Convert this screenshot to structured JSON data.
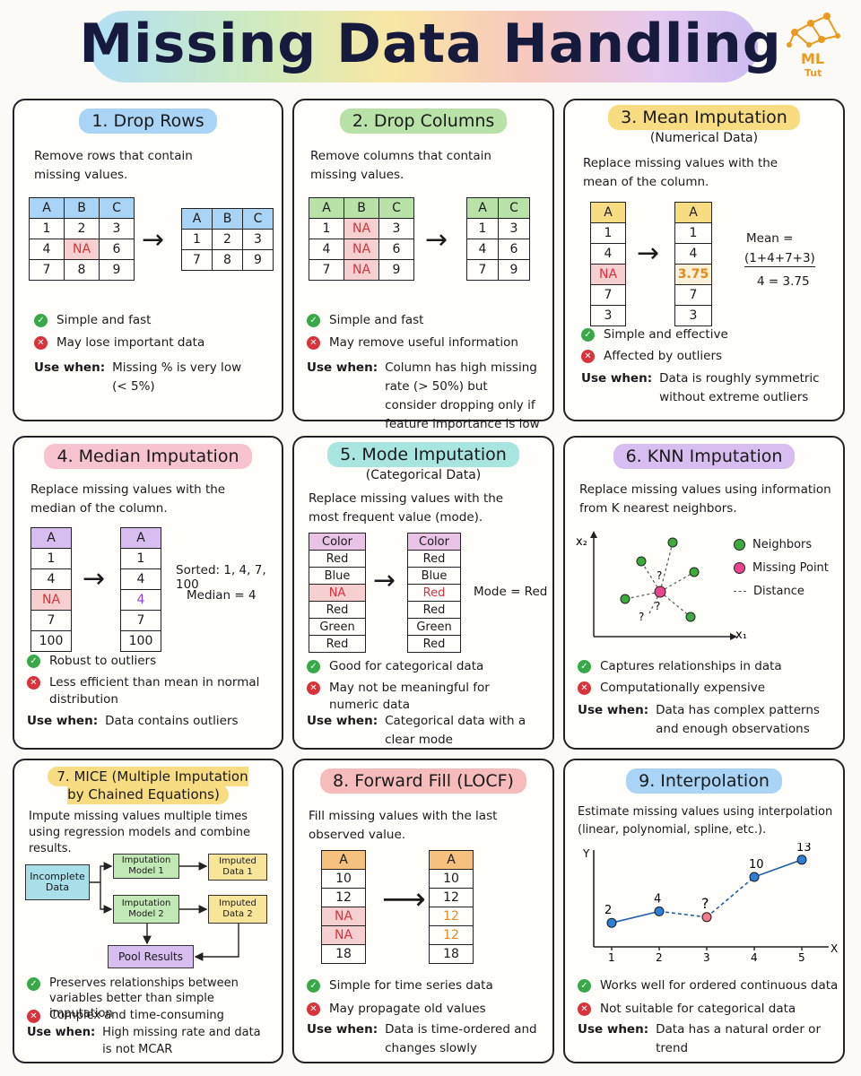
{
  "title": "Missing Data Handling",
  "logo": {
    "line1": "ML",
    "line2": "Tut"
  },
  "use_label": "Use when:",
  "cards": {
    "drop_rows": {
      "title": "1. Drop Rows",
      "desc": "Remove rows that contain missing values.",
      "before": {
        "headers": [
          "A",
          "B",
          "C"
        ],
        "rows": [
          [
            "1",
            "2",
            "3"
          ],
          [
            "4",
            "NA",
            "6"
          ],
          [
            "7",
            "8",
            "9"
          ]
        ]
      },
      "after": {
        "headers": [
          "A",
          "B",
          "C"
        ],
        "rows": [
          [
            "1",
            "2",
            "3"
          ],
          [
            "7",
            "8",
            "9"
          ]
        ]
      },
      "pro": "Simple and fast",
      "con": "May lose important data",
      "use": "Missing % is very low (< 5%)"
    },
    "drop_columns": {
      "title": "2. Drop Columns",
      "desc": "Remove columns that contain missing values.",
      "before": {
        "headers": [
          "A",
          "B",
          "C"
        ],
        "rows": [
          [
            "1",
            "NA",
            "3"
          ],
          [
            "4",
            "NA",
            "6"
          ],
          [
            "7",
            "NA",
            "9"
          ]
        ]
      },
      "after": {
        "headers": [
          "A",
          "C"
        ],
        "rows": [
          [
            "1",
            "3"
          ],
          [
            "4",
            "6"
          ],
          [
            "7",
            "9"
          ]
        ]
      },
      "pro": "Simple and fast",
      "con": "May remove useful information",
      "use": "Column has high missing rate (> 50%) but consider dropping only if feature importance is low"
    },
    "mean": {
      "title": "3. Mean Imputation",
      "subtitle": "(Numerical Data)",
      "desc": "Replace missing values with the mean of the column.",
      "before": [
        "1",
        "4",
        "NA",
        "7",
        "3"
      ],
      "after": [
        "1",
        "4",
        "3.75",
        "7",
        "3"
      ],
      "header": "A",
      "formula_1": "Mean =",
      "formula_2": "(1+4+7+3)",
      "formula_3": "4 = 3.75",
      "pro": "Simple and effective",
      "con": "Affected by outliers",
      "use": "Data is roughly symmetric without extreme outliers"
    },
    "median": {
      "title": "4. Median Imputation",
      "desc": "Replace missing values with the median of the column.",
      "header": "A",
      "before": [
        "1",
        "4",
        "NA",
        "7",
        "100"
      ],
      "after": [
        "1",
        "4",
        "4",
        "7",
        "100"
      ],
      "sorted": "Sorted: 1, 4, 7, 100",
      "median": "Median = 4",
      "pro": "Robust to outliers",
      "con": "Less efficient than mean in normal distribution",
      "use": "Data contains outliers"
    },
    "mode": {
      "title": "5. Mode Imputation",
      "subtitle": "(Categorical Data)",
      "desc": "Replace missing values with the most frequent value (mode).",
      "header": "Color",
      "before": [
        "Red",
        "Blue",
        "NA",
        "Red",
        "Green",
        "Red"
      ],
      "after": [
        "Red",
        "Blue",
        "Red",
        "Red",
        "Green",
        "Red"
      ],
      "mode": "Mode = Red",
      "pro": "Good for categorical data",
      "con": "May not be meaningful for numeric data",
      "use": "Categorical data with a clear mode"
    },
    "knn": {
      "title": "6. KNN Imputation",
      "desc": "Replace missing values using information from K nearest neighbors.",
      "x_label": "x₁",
      "y_label": "x₂",
      "legend": [
        "Neighbors",
        "Missing Point",
        "Distance"
      ],
      "q": "?",
      "pro": "Captures relationships in data",
      "con": "Computationally expensive",
      "use": "Data has complex patterns and enough observations"
    },
    "mice": {
      "title": "7. MICE (Multiple Imputation by Chained Equations)",
      "desc": "Impute missing values multiple times using regression models and combine results.",
      "incomplete": "Incomplete Data",
      "model1": "Imputation Model 1",
      "model2": "Imputation Model 2",
      "imputed1": "Imputed Data 1",
      "imputed2": "Imputed Data 2",
      "pool": "Pool Results",
      "pro": "Preserves relationships between variables better than simple imputation",
      "con": "Complex and time-consuming",
      "use": "High missing rate and data is not MCAR"
    },
    "ffill": {
      "title": "8. Forward Fill (LOCF)",
      "desc": "Fill missing values with the last observed value.",
      "header": "A",
      "before": [
        "10",
        "12",
        "NA",
        "NA",
        "18"
      ],
      "after": [
        "10",
        "12",
        "12",
        "12",
        "18"
      ],
      "pro": "Simple for time series data",
      "con": "May propagate old values",
      "use": "Data is time-ordered and changes slowly"
    },
    "interp": {
      "title": "9. Interpolation",
      "desc": "Estimate missing values using interpolation (linear, polynomial, spline, etc.).",
      "x_label": "X",
      "y_label": "Y",
      "pro": "Works well for ordered continuous data",
      "con": "Not suitable for categorical data",
      "use": "Data has a natural order or trend"
    }
  },
  "chart_data": {
    "type": "line",
    "x": [
      1,
      2,
      3,
      4,
      5
    ],
    "y": [
      2,
      4,
      null,
      10,
      13
    ],
    "labels": [
      "2",
      "4",
      "?",
      "10",
      "13"
    ],
    "xlabel": "X",
    "ylabel": "Y"
  }
}
